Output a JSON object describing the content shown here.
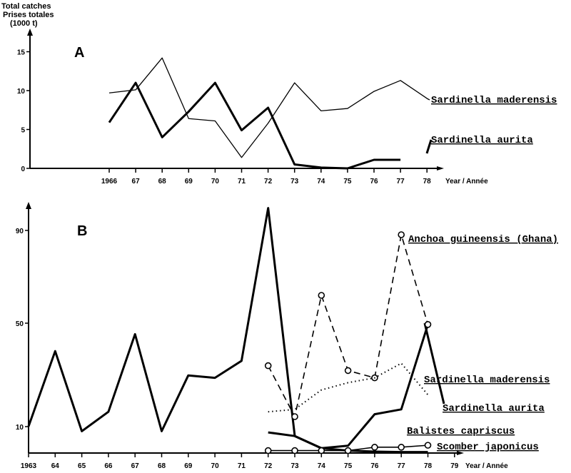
{
  "y_axis_title": [
    "Total catches",
    "Prises totales",
    "(1000 t)"
  ],
  "chart_data": [
    {
      "type": "line",
      "panel": "A",
      "xlabel": "Year / Année",
      "ylabel": "Total catches / Prises totales (1000 t)",
      "x": [
        1966,
        1967,
        1968,
        1969,
        1970,
        1971,
        1972,
        1973,
        1974,
        1975,
        1976,
        1977,
        1978
      ],
      "x_tick_labels": [
        "1966",
        "67",
        "68",
        "69",
        "70",
        "71",
        "72",
        "73",
        "74",
        "75",
        "76",
        "77",
        "78"
      ],
      "y_ticks": [
        0,
        5,
        10,
        15
      ],
      "y_tick_labels": [
        "0",
        "5",
        "10",
        "15"
      ],
      "ylim": [
        0,
        17
      ],
      "series": [
        {
          "name": "Sardinella maderensis",
          "style": "thin",
          "values": [
            9.7,
            10.1,
            14.2,
            6.4,
            6.1,
            1.4,
            5.8,
            11.0,
            7.4,
            7.7,
            9.9,
            11.3,
            9.0
          ]
        },
        {
          "name": "Sardinella aurita",
          "style": "thick",
          "values": [
            5.9,
            11.0,
            4.0,
            7.3,
            11.0,
            4.9,
            7.8,
            0.5,
            0.1,
            0.0,
            1.1,
            1.1,
            null
          ]
        }
      ]
    },
    {
      "type": "line",
      "panel": "B",
      "xlabel": "Year / Année",
      "x": [
        1963,
        1964,
        1965,
        1966,
        1967,
        1968,
        1969,
        1970,
        1971,
        1972,
        1973,
        1974,
        1975,
        1976,
        1977,
        1978,
        1979
      ],
      "x_tick_labels": [
        "1963",
        "64",
        "65",
        "66",
        "67",
        "68",
        "69",
        "70",
        "71",
        "72",
        "73",
        "74",
        "75",
        "76",
        "77",
        "78",
        "79"
      ],
      "y_ticks": [
        10,
        50,
        90
      ],
      "y_tick_labels": [
        "10",
        "50",
        "90"
      ],
      "ylim": [
        0,
        100
      ],
      "series": [
        {
          "name": "Sardinella aurita",
          "style": "thick",
          "x": [
            1963,
            1964,
            1965,
            1966,
            1967,
            1968,
            1969,
            1970,
            1971,
            1972,
            1973,
            1974,
            1975,
            1976,
            1977,
            1978
          ],
          "values": [
            11,
            42,
            9,
            17,
            49,
            9,
            32,
            31,
            38,
            101,
            7,
            2,
            3,
            16,
            18,
            53
          ]
        },
        {
          "name": "Anchoa guineensis (Ghana)",
          "style": "dashed-circles",
          "x": [
            1972,
            1973,
            1974,
            1975,
            1976,
            1977,
            1978
          ],
          "values": [
            36,
            15,
            65,
            34,
            31,
            90,
            53
          ]
        },
        {
          "name": "Sardinella maderensis",
          "style": "dotted",
          "x": [
            1972,
            1973,
            1974,
            1975,
            1976,
            1977,
            1978
          ],
          "values": [
            17,
            18,
            26,
            29,
            31,
            37,
            24
          ]
        },
        {
          "name": "Balistes capriscus",
          "style": "thick",
          "x": [
            1972,
            1973,
            1974,
            1975,
            1976,
            1977,
            1978
          ],
          "values": [
            8.5,
            7,
            2,
            1,
            0.6,
            0.4,
            0.4
          ]
        },
        {
          "name": "Scomber japonicus",
          "style": "solid-circles",
          "x": [
            1972,
            1973,
            1974,
            1975,
            1976,
            1977,
            1978
          ],
          "values": [
            1,
            1,
            1,
            1,
            2.4,
            2.4,
            3.2
          ]
        }
      ]
    }
  ]
}
